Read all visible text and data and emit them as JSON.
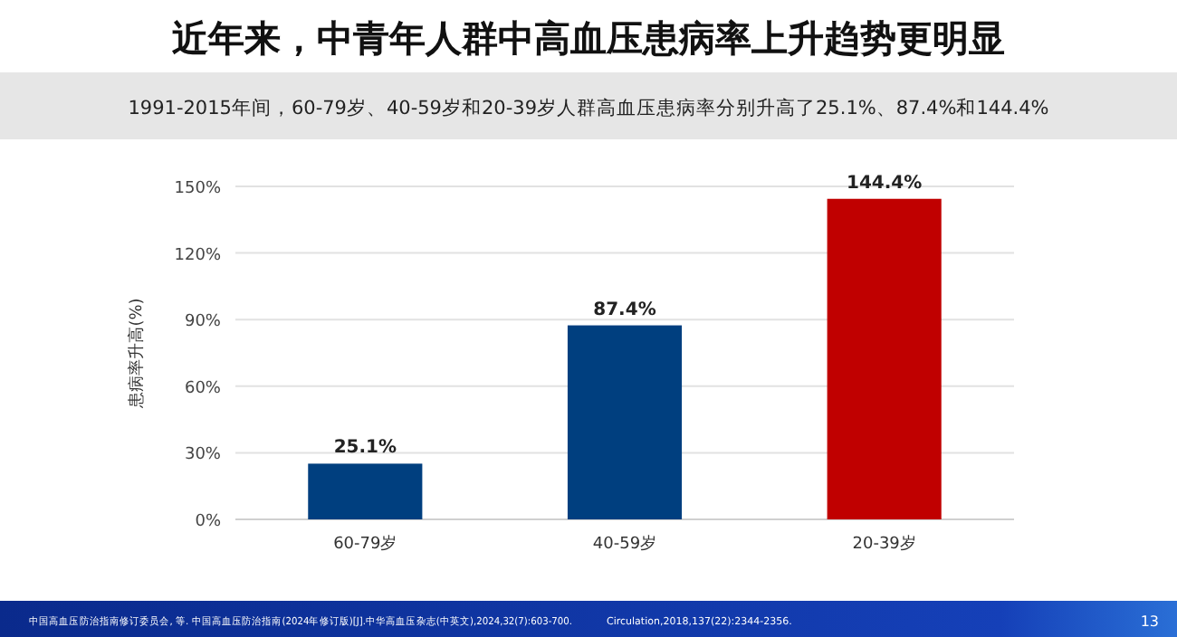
{
  "chart_data": {
    "type": "bar",
    "title": "近年来，中青年人群中高血压患病率上升趋势更明显",
    "subtitle": "1991-2015年间，60-79岁、40-59岁和20-39岁人群高血压患病率分别升高了25.1%、87.4%和144.4%",
    "ylabel": "患病率升高(%)",
    "categories": [
      "60-79岁",
      "40-59岁",
      "20-39岁"
    ],
    "values": [
      25.1,
      87.4,
      144.4
    ],
    "colors": [
      "#003f7f",
      "#003f7f",
      "#c00000"
    ],
    "ylim": [
      0,
      150
    ],
    "yticks": [
      {
        "value": 0,
        "label": "0%"
      },
      {
        "value": 30,
        "label": "30%"
      },
      {
        "value": 60,
        "label": "60%"
      },
      {
        "value": 90,
        "label": "90%"
      },
      {
        "value": 120,
        "label": "120%"
      },
      {
        "value": 150,
        "label": "150%"
      }
    ],
    "grid": "y",
    "value_labels": [
      "25.1%",
      "87.4%",
      "144.4%"
    ],
    "annotations": [
      "中国高血压防治指南修订委员会, 等. 中国高血压防治指南(2024年修订版)[J].中华高血压杂志(中英文),2024,32(7):603-700.",
      "Circulation,2018,137(22):2344-2356.",
      "13"
    ]
  }
}
